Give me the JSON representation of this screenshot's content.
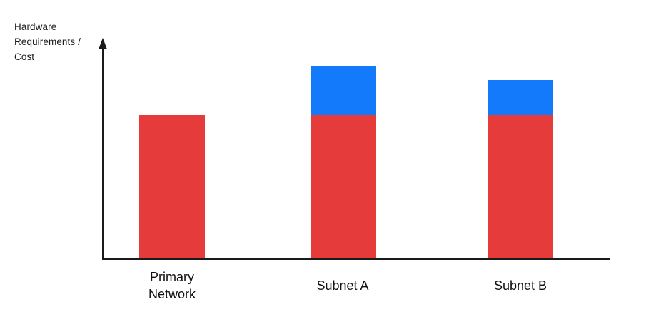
{
  "chart_data": {
    "type": "bar",
    "stacked": true,
    "title": "",
    "xlabel": "",
    "ylabel": "Hardware Requirements / Cost",
    "categories": [
      "Primary Network",
      "Subnet A",
      "Subnet B"
    ],
    "series": [
      {
        "name": "red",
        "color": "#E53B3B",
        "values": [
          67,
          67,
          67
        ]
      },
      {
        "name": "blue",
        "color": "#127AFB",
        "values": [
          0,
          23,
          16.5
        ]
      }
    ],
    "ylim": [
      0,
      100
    ],
    "y_ticks": [],
    "x_ticks_visible": false,
    "legend": "none",
    "grid": false,
    "axis_color": "#1A1A1A",
    "y_axis_arrow": true
  }
}
